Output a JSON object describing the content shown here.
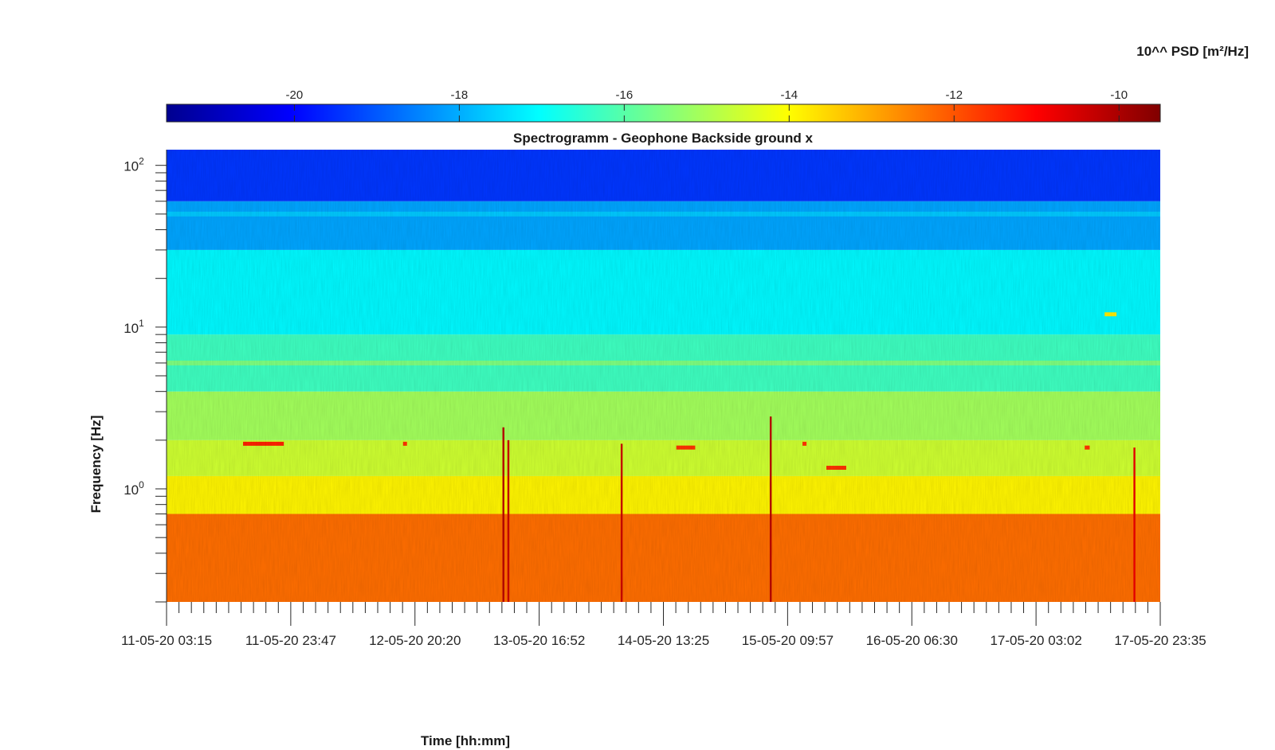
{
  "chart_data": {
    "type": "heatmap",
    "title": "Spectrogramm - Geophone Backside ground x",
    "xlabel": "Time [hh:mm]",
    "ylabel": "Frequency [Hz]",
    "x_ticks": [
      "11-05-20 03:15",
      "11-05-20 23:47",
      "12-05-20 20:20",
      "13-05-20 16:52",
      "14-05-20 13:25",
      "15-05-20 09:57",
      "16-05-20 06:30",
      "17-05-20 03:02",
      "17-05-20 23:35"
    ],
    "x_range": [
      "11-05-20 03:15",
      "17-05-20 23:35"
    ],
    "y_scale": "log",
    "y_ticks": [
      {
        "base": "10",
        "exp": "0",
        "value": 1
      },
      {
        "base": "10",
        "exp": "1",
        "value": 10
      },
      {
        "base": "10",
        "exp": "2",
        "value": 100
      }
    ],
    "y_range": [
      0.2,
      125
    ],
    "colorbar": {
      "label": "10^^ PSD [m²/Hz]",
      "ticks": [
        "-20",
        "-18",
        "-16",
        "-14",
        "-12",
        "-10"
      ],
      "tick_values": [
        -20,
        -18,
        -16,
        -14,
        -12,
        -10
      ],
      "range": [
        -21.55,
        -9.5
      ],
      "colormap": "jet",
      "placement": "top"
    },
    "bands": [
      {
        "f_min": 0.2,
        "f_max": 0.7,
        "level": -12.3
      },
      {
        "f_min": 0.7,
        "f_max": 1.2,
        "level": -13.9
      },
      {
        "f_min": 1.2,
        "f_max": 2.0,
        "level": -14.6
      },
      {
        "f_min": 2.0,
        "f_max": 4.0,
        "level": -15.1
      },
      {
        "f_min": 4.0,
        "f_max": 9.0,
        "level": -16.3
      },
      {
        "f_min": 9.0,
        "f_max": 30.0,
        "level": -17.1
      },
      {
        "f_min": 30.0,
        "f_max": 60.0,
        "level": -18.1
      },
      {
        "f_min": 60.0,
        "f_max": 125.0,
        "level": -19.4
      }
    ],
    "line_features": [
      {
        "name": "6 Hz line",
        "f": 6.0,
        "level": -15.4
      },
      {
        "name": "50 Hz line",
        "f": 50.0,
        "level": -17.6
      }
    ],
    "transient_events": [
      {
        "t_frac": 0.339,
        "f_max": 2.4,
        "level": -10.2
      },
      {
        "t_frac": 0.344,
        "f_max": 2.0,
        "level": -10.4
      },
      {
        "t_frac": 0.458,
        "f_max": 1.9,
        "level": -10.4
      },
      {
        "t_frac": 0.608,
        "f_max": 2.8,
        "level": -10.2
      },
      {
        "t_frac": 0.974,
        "f_max": 1.8,
        "level": -10.8
      }
    ],
    "marks": [
      {
        "t0": 0.077,
        "t1": 0.118,
        "f": 1.9,
        "level": -11.4
      },
      {
        "t0": 0.238,
        "t1": 0.242,
        "f": 1.9,
        "level": -11.6
      },
      {
        "t0": 0.513,
        "t1": 0.532,
        "f": 1.8,
        "level": -11.6
      },
      {
        "t0": 0.64,
        "t1": 0.644,
        "f": 1.9,
        "level": -11.6
      },
      {
        "t0": 0.664,
        "t1": 0.684,
        "f": 1.35,
        "level": -11.6
      },
      {
        "t0": 0.924,
        "t1": 0.929,
        "f": 1.8,
        "level": -11.6
      },
      {
        "t0": 0.944,
        "t1": 0.956,
        "f": 12.0,
        "level": -13.8
      }
    ],
    "grid": false
  }
}
